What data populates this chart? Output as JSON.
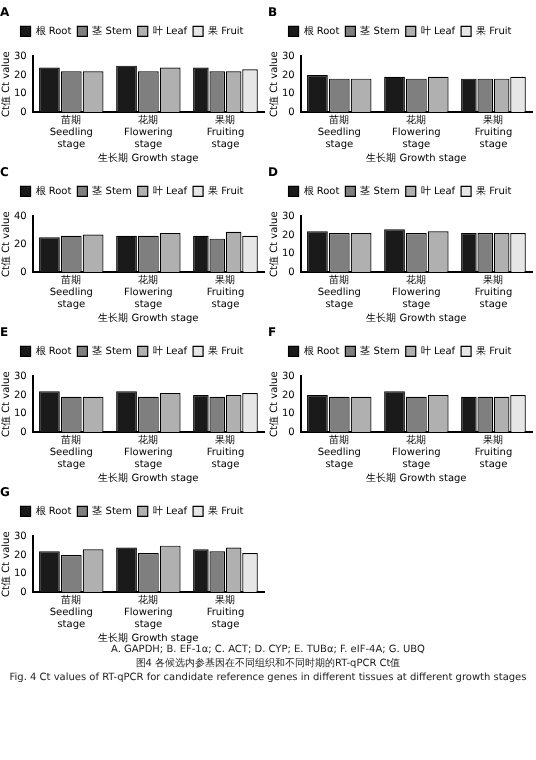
{
  "chart_data": [
    {
      "type": "bar",
      "title": "A",
      "xlabel": "生长期 Growth stage",
      "ylabel": "Ct值 Ct value",
      "categories": [
        "苗期\nSeedling stage",
        "花期\nFlowering stage",
        "果期\nFruiting stage"
      ],
      "ylim": [
        0,
        30
      ],
      "yticks": [
        0,
        10,
        20,
        30
      ],
      "grid": false,
      "legend": "top",
      "series": [
        {
          "name": "根 Root",
          "color": "#1a1a1a",
          "values": [
            24,
            25,
            24
          ]
        },
        {
          "name": "茎 Stem",
          "color": "#7f7f7f",
          "values": [
            22,
            22,
            22
          ]
        },
        {
          "name": "叶 Leaf",
          "color": "#b0b0b0",
          "values": [
            22,
            24,
            22
          ]
        },
        {
          "name": "果 Fruit",
          "color": "#e6e6e6",
          "values": [
            null,
            null,
            23
          ]
        }
      ]
    },
    {
      "type": "bar",
      "title": "B",
      "xlabel": "生长期 Growth stage",
      "ylabel": "Ct值 Ct value",
      "categories": [
        "苗期\nSeedling stage",
        "花期\nFlowering stage",
        "果期\nFruiting stage"
      ],
      "ylim": [
        0,
        30
      ],
      "yticks": [
        0,
        10,
        20,
        30
      ],
      "grid": false,
      "legend": "top",
      "series": [
        {
          "name": "根 Root",
          "color": "#1a1a1a",
          "values": [
            20,
            19,
            18
          ]
        },
        {
          "name": "茎 Stem",
          "color": "#7f7f7f",
          "values": [
            18,
            18,
            18
          ]
        },
        {
          "name": "叶 Leaf",
          "color": "#b0b0b0",
          "values": [
            18,
            19,
            18
          ]
        },
        {
          "name": "果 Fruit",
          "color": "#e6e6e6",
          "values": [
            null,
            null,
            19
          ]
        }
      ]
    },
    {
      "type": "bar",
      "title": "C",
      "xlabel": "生长期 Growth stage",
      "ylabel": "Ct值 Ct value",
      "categories": [
        "苗期\nSeedling stage",
        "花期\nFlowering stage",
        "果期\nFruiting stage"
      ],
      "ylim": [
        0,
        40
      ],
      "yticks": [
        0,
        20,
        40
      ],
      "grid": false,
      "legend": "top",
      "series": [
        {
          "name": "根 Root",
          "color": "#1a1a1a",
          "values": [
            25,
            26,
            26
          ]
        },
        {
          "name": "茎 Stem",
          "color": "#7f7f7f",
          "values": [
            26,
            26,
            24
          ]
        },
        {
          "name": "叶 Leaf",
          "color": "#b0b0b0",
          "values": [
            27,
            28,
            29
          ]
        },
        {
          "name": "果 Fruit",
          "color": "#e6e6e6",
          "values": [
            null,
            null,
            26
          ]
        }
      ]
    },
    {
      "type": "bar",
      "title": "D",
      "xlabel": "生长期 Growth stage",
      "ylabel": "Ct值 Ct value",
      "categories": [
        "苗期\nSeedling stage",
        "花期\nFlowering stage",
        "果期\nFruiting stage"
      ],
      "ylim": [
        0,
        30
      ],
      "yticks": [
        0,
        10,
        20,
        30
      ],
      "grid": false,
      "legend": "top",
      "series": [
        {
          "name": "根 Root",
          "color": "#1a1a1a",
          "values": [
            22,
            23,
            21
          ]
        },
        {
          "name": "茎 Stem",
          "color": "#7f7f7f",
          "values": [
            21,
            21,
            21
          ]
        },
        {
          "name": "叶 Leaf",
          "color": "#b0b0b0",
          "values": [
            21,
            22,
            21
          ]
        },
        {
          "name": "果 Fruit",
          "color": "#e6e6e6",
          "values": [
            null,
            null,
            21
          ]
        }
      ]
    },
    {
      "type": "bar",
      "title": "E",
      "xlabel": "生长期 Growth stage",
      "ylabel": "Ct值 Ct value",
      "categories": [
        "苗期\nSeedling stage",
        "花期\nFlowering stage",
        "果期\nFruiting stage"
      ],
      "ylim": [
        0,
        30
      ],
      "yticks": [
        0,
        10,
        20,
        30
      ],
      "grid": false,
      "legend": "top",
      "series": [
        {
          "name": "根 Root",
          "color": "#1a1a1a",
          "values": [
            22,
            22,
            20
          ]
        },
        {
          "name": "茎 Stem",
          "color": "#7f7f7f",
          "values": [
            19,
            19,
            19
          ]
        },
        {
          "name": "叶 Leaf",
          "color": "#b0b0b0",
          "values": [
            19,
            21,
            20
          ]
        },
        {
          "name": "果 Fruit",
          "color": "#e6e6e6",
          "values": [
            null,
            null,
            21
          ]
        }
      ]
    },
    {
      "type": "bar",
      "title": "F",
      "xlabel": "生长期 Growth stage",
      "ylabel": "Ct值 Ct value",
      "categories": [
        "苗期\nSeedling stage",
        "花期\nFlowering stage",
        "果期\nFruiting stage"
      ],
      "ylim": [
        0,
        30
      ],
      "yticks": [
        0,
        10,
        20,
        30
      ],
      "grid": false,
      "legend": "top",
      "series": [
        {
          "name": "根 Root",
          "color": "#1a1a1a",
          "values": [
            20,
            22,
            19
          ]
        },
        {
          "name": "茎 Stem",
          "color": "#7f7f7f",
          "values": [
            19,
            19,
            19
          ]
        },
        {
          "name": "叶 Leaf",
          "color": "#b0b0b0",
          "values": [
            19,
            20,
            19
          ]
        },
        {
          "name": "果 Fruit",
          "color": "#e6e6e6",
          "values": [
            null,
            null,
            20
          ]
        }
      ]
    },
    {
      "type": "bar",
      "title": "G",
      "xlabel": "生长期 Growth stage",
      "ylabel": "Ct值 Ct value",
      "categories": [
        "苗期\nSeedling stage",
        "花期\nFlowering stage",
        "果期\nFruiting stage"
      ],
      "ylim": [
        0,
        30
      ],
      "yticks": [
        0,
        10,
        20,
        30
      ],
      "grid": false,
      "legend": "top",
      "series": [
        {
          "name": "根 Root",
          "color": "#1a1a1a",
          "values": [
            22,
            24,
            23
          ]
        },
        {
          "name": "茎 Stem",
          "color": "#7f7f7f",
          "values": [
            20,
            21,
            22
          ]
        },
        {
          "name": "叶 Leaf",
          "color": "#b0b0b0",
          "values": [
            23,
            25,
            24
          ]
        },
        {
          "name": "果 Fruit",
          "color": "#e6e6e6",
          "values": [
            null,
            null,
            21
          ]
        }
      ],
      "annotations": [
        "A. GAPDH; B. EF-1α; C. ACT; D. CYP; E. TUBα; F. eIF-4A; G. UBQ",
        "图4 各候选内参基因在不同组织和不同时期的RT-qPCR Ct值",
        "Fig. 4 Ct values of RT-qPCR for candidate reference genes in different tissues at different growth stages"
      ]
    }
  ]
}
